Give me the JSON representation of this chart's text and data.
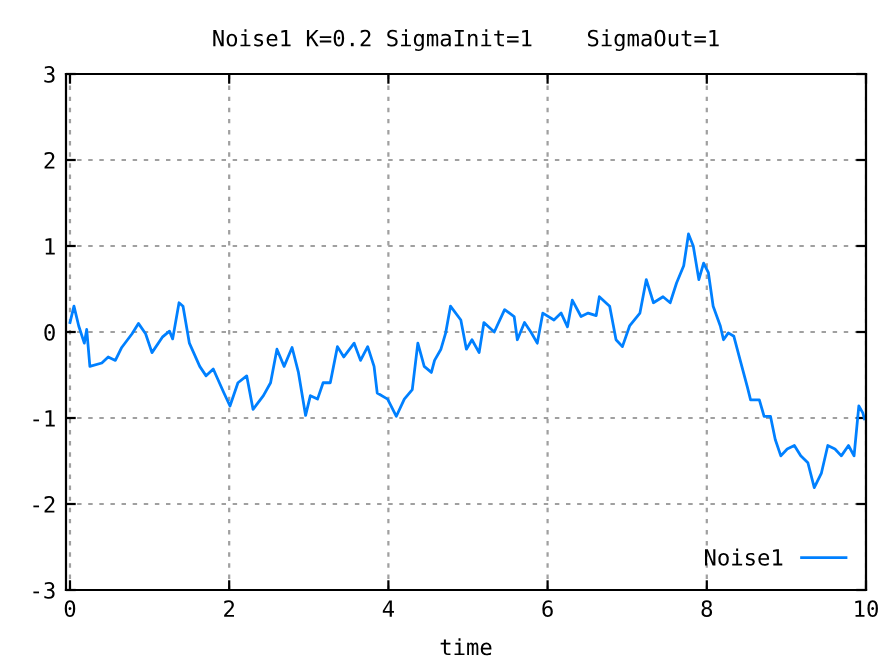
{
  "chart_data": {
    "type": "line",
    "title": "Noise1 K=0.2 SigmaInit=1    SigmaOut=1",
    "xlabel": "time",
    "xlim": [
      -0.05,
      10
    ],
    "ylim": [
      -3,
      3
    ],
    "xticks": [
      0,
      2,
      4,
      6,
      8,
      10
    ],
    "yticks": [
      -3,
      -2,
      -1,
      0,
      1,
      2,
      3
    ],
    "grid": true,
    "legend": "bottom right",
    "series": [
      {
        "name": "Noise1",
        "color": "#0080ff",
        "x": [
          0.0,
          0.05,
          0.11,
          0.18,
          0.21,
          0.25,
          0.4,
          0.48,
          0.57,
          0.65,
          0.78,
          0.86,
          0.95,
          1.03,
          1.16,
          1.25,
          1.29,
          1.37,
          1.42,
          1.5,
          1.63,
          1.71,
          1.8,
          1.93,
          2.01,
          2.11,
          2.22,
          2.3,
          2.43,
          2.52,
          2.6,
          2.69,
          2.79,
          2.87,
          2.96,
          3.02,
          3.11,
          3.18,
          3.27,
          3.36,
          3.44,
          3.57,
          3.65,
          3.74,
          3.82,
          3.86,
          3.99,
          4.1,
          4.2,
          4.3,
          4.37,
          4.45,
          4.54,
          4.58,
          4.66,
          4.72,
          4.78,
          4.91,
          4.98,
          5.05,
          5.14,
          5.2,
          5.33,
          5.46,
          5.58,
          5.62,
          5.71,
          5.79,
          5.87,
          5.94,
          6.08,
          6.17,
          6.25,
          6.31,
          6.42,
          6.51,
          6.61,
          6.65,
          6.78,
          6.86,
          6.94,
          7.03,
          7.16,
          7.24,
          7.33,
          7.45,
          7.54,
          7.62,
          7.71,
          7.77,
          7.83,
          7.9,
          7.96,
          8.02,
          8.08,
          8.17,
          8.21,
          8.27,
          8.34,
          8.42,
          8.51,
          8.55,
          8.66,
          8.72,
          8.8,
          8.86,
          8.93,
          9.01,
          9.1,
          9.18,
          9.27,
          9.35,
          9.44,
          9.52,
          9.61,
          9.69,
          9.78,
          9.85,
          9.91,
          9.96,
          9.98
        ],
        "values": [
          0.11,
          0.3,
          0.07,
          -0.13,
          0.03,
          -0.4,
          -0.36,
          -0.29,
          -0.33,
          -0.18,
          -0.02,
          0.1,
          -0.02,
          -0.24,
          -0.06,
          0.01,
          -0.08,
          0.34,
          0.3,
          -0.13,
          -0.4,
          -0.51,
          -0.43,
          -0.7,
          -0.86,
          -0.59,
          -0.51,
          -0.9,
          -0.74,
          -0.59,
          -0.2,
          -0.4,
          -0.18,
          -0.47,
          -0.97,
          -0.74,
          -0.78,
          -0.59,
          -0.59,
          -0.17,
          -0.29,
          -0.13,
          -0.33,
          -0.17,
          -0.4,
          -0.71,
          -0.78,
          -0.98,
          -0.78,
          -0.67,
          -0.13,
          -0.4,
          -0.47,
          -0.33,
          -0.2,
          -0.01,
          0.3,
          0.14,
          -0.2,
          -0.09,
          -0.24,
          0.11,
          0.0,
          0.26,
          0.18,
          -0.09,
          0.11,
          0.0,
          -0.13,
          0.22,
          0.14,
          0.22,
          0.06,
          0.37,
          0.18,
          0.22,
          0.19,
          0.41,
          0.3,
          -0.09,
          -0.17,
          0.07,
          0.22,
          0.61,
          0.34,
          0.41,
          0.34,
          0.57,
          0.77,
          1.14,
          1.0,
          0.61,
          0.8,
          0.69,
          0.3,
          0.07,
          -0.09,
          -0.01,
          -0.05,
          -0.33,
          -0.64,
          -0.79,
          -0.79,
          -0.98,
          -0.98,
          -1.25,
          -1.44,
          -1.36,
          -1.32,
          -1.44,
          -1.52,
          -1.81,
          -1.64,
          -1.32,
          -1.36,
          -1.44,
          -1.32,
          -1.44,
          -0.86,
          -0.94,
          -1.01
        ]
      }
    ]
  }
}
